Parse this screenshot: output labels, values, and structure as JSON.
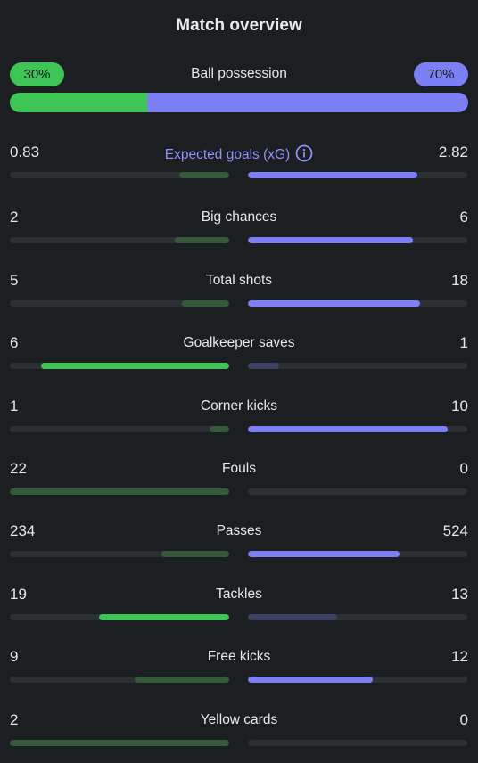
{
  "header": {
    "title": "Match overview"
  },
  "possession": {
    "label": "Ball possession",
    "home_text": "30%",
    "away_text": "70%",
    "home": 30,
    "away": 70
  },
  "colors": {
    "home_strong": "#3fc456",
    "home_weak": "#345a3b",
    "away_strong": "#7d80f5",
    "away_weak": "#3d4162",
    "track": "#2b3034",
    "background": "#1b1f22"
  },
  "stats": [
    {
      "name": "Expected goals (xG)",
      "home": "0.83",
      "away": "2.82",
      "home_fill": 0.227,
      "away_fill": 0.773,
      "leader": "away",
      "accent": true,
      "icon": "info-icon"
    },
    {
      "name": "Big chances",
      "home": "2",
      "away": "6",
      "home_fill": 0.25,
      "away_fill": 0.75,
      "leader": "away"
    },
    {
      "name": "Total shots",
      "home": "5",
      "away": "18",
      "home_fill": 0.217,
      "away_fill": 0.783,
      "leader": "away"
    },
    {
      "name": "Goalkeeper saves",
      "home": "6",
      "away": "1",
      "home_fill": 0.857,
      "away_fill": 0.143,
      "leader": "home"
    },
    {
      "name": "Corner kicks",
      "home": "1",
      "away": "10",
      "home_fill": 0.091,
      "away_fill": 0.909,
      "leader": "away"
    },
    {
      "name": "Fouls",
      "home": "22",
      "away": "0",
      "home_fill": 1.0,
      "away_fill": 0.0,
      "leader": "none"
    },
    {
      "name": "Passes",
      "home": "234",
      "away": "524",
      "home_fill": 0.309,
      "away_fill": 0.691,
      "leader": "away"
    },
    {
      "name": "Tackles",
      "home": "19",
      "away": "13",
      "home_fill": 0.594,
      "away_fill": 0.406,
      "leader": "home"
    },
    {
      "name": "Free kicks",
      "home": "9",
      "away": "12",
      "home_fill": 0.429,
      "away_fill": 0.571,
      "leader": "away"
    },
    {
      "name": "Yellow cards",
      "home": "2",
      "away": "0",
      "home_fill": 1.0,
      "away_fill": 0.0,
      "leader": "none"
    }
  ]
}
